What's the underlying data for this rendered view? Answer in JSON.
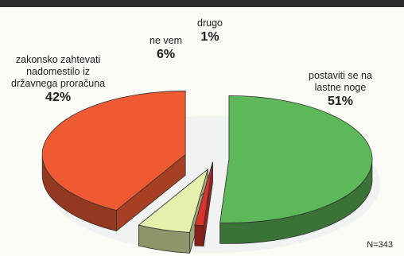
{
  "chart_data": {
    "type": "pie",
    "style": "3d-exploded",
    "slices": [
      {
        "label": "postaviti se na\nlastne noge",
        "percent_label": "51%",
        "value": 51,
        "color": "#5db85a"
      },
      {
        "label": "drugo",
        "percent_label": "1%",
        "value": 1,
        "color": "#d9342b"
      },
      {
        "label": "ne vem",
        "percent_label": "6%",
        "value": 6,
        "color": "#e6efab"
      },
      {
        "label": "zakonsko zahtevati\nnadomestilo iz\ndržavnega proračuna",
        "percent_label": "42%",
        "value": 42,
        "color": "#ef5a33"
      }
    ],
    "note": "N=343"
  }
}
